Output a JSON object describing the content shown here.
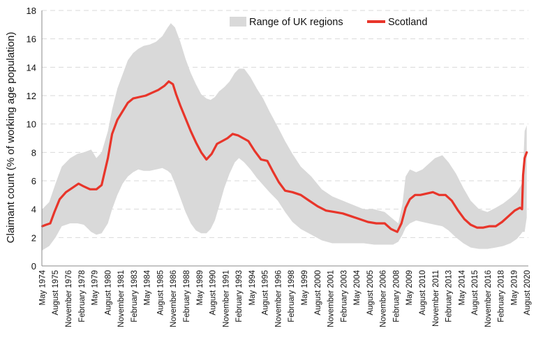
{
  "chart_data": {
    "type": "area",
    "title": "",
    "xlabel": "",
    "ylabel": "Claimant count (% of working age population)",
    "ylim": [
      0,
      18
    ],
    "yticks": [
      "0",
      "2",
      "4",
      "6",
      "8",
      "10",
      "12",
      "14",
      "16",
      "18"
    ],
    "xlim": [
      1974.3,
      2020.7
    ],
    "grid": "horizontal dashed",
    "legend_position": "top-right",
    "xtick_labels": [
      {
        "label": "May 1974",
        "x": 1974.33
      },
      {
        "label": "August 1975",
        "x": 1975.58
      },
      {
        "label": "November 1976",
        "x": 1976.83
      },
      {
        "label": "February 1978",
        "x": 1978.08
      },
      {
        "label": "May 1979",
        "x": 1979.33
      },
      {
        "label": "August 1980",
        "x": 1980.58
      },
      {
        "label": "November 1981",
        "x": 1981.83
      },
      {
        "label": "February 1983",
        "x": 1983.08
      },
      {
        "label": "May 1984",
        "x": 1984.33
      },
      {
        "label": "August 1985",
        "x": 1985.58
      },
      {
        "label": "November 1986",
        "x": 1986.83
      },
      {
        "label": "February 1988",
        "x": 1988.08
      },
      {
        "label": "May 1989",
        "x": 1989.33
      },
      {
        "label": "August 1990",
        "x": 1990.58
      },
      {
        "label": "November 1991",
        "x": 1991.83
      },
      {
        "label": "February 1993",
        "x": 1993.08
      },
      {
        "label": "May 1994",
        "x": 1994.33
      },
      {
        "label": "August 1995",
        "x": 1995.58
      },
      {
        "label": "November 1996",
        "x": 1996.83
      },
      {
        "label": "February 1998",
        "x": 1998.08
      },
      {
        "label": "May 1999",
        "x": 1999.33
      },
      {
        "label": "August 2000",
        "x": 2000.58
      },
      {
        "label": "November 2001",
        "x": 2001.83
      },
      {
        "label": "February 2003",
        "x": 2003.08
      },
      {
        "label": "May 2004",
        "x": 2004.33
      },
      {
        "label": "August 2005",
        "x": 2005.58
      },
      {
        "label": "November 2006",
        "x": 2006.83
      },
      {
        "label": "February 2008",
        "x": 2008.08
      },
      {
        "label": "May 2009",
        "x": 2009.33
      },
      {
        "label": "August 2010",
        "x": 2010.58
      },
      {
        "label": "November 2011",
        "x": 2011.83
      },
      {
        "label": "February 2013",
        "x": 2013.08
      },
      {
        "label": "May 2014",
        "x": 2014.33
      },
      {
        "label": "August 2015",
        "x": 2015.58
      },
      {
        "label": "November 2016",
        "x": 2016.83
      },
      {
        "label": "February 2018",
        "x": 2018.08
      },
      {
        "label": "May 2019",
        "x": 2019.33
      },
      {
        "label": "August 2020",
        "x": 2020.58
      }
    ],
    "series": [
      {
        "name": "Range of UK regions",
        "kind": "range-band",
        "color": "#d9d9d9",
        "x": [
          1974.33,
          1975.0,
          1975.6,
          1976.2,
          1977.0,
          1977.7,
          1978.3,
          1979.0,
          1979.5,
          1980.0,
          1980.6,
          1981.0,
          1981.5,
          1982.0,
          1982.5,
          1983.0,
          1983.5,
          1984.0,
          1984.6,
          1985.2,
          1985.8,
          1986.3,
          1986.6,
          1987.0,
          1987.5,
          1988.0,
          1988.5,
          1989.0,
          1989.5,
          1990.0,
          1990.4,
          1990.8,
          1991.2,
          1991.7,
          1992.2,
          1992.7,
          1993.1,
          1993.6,
          1994.2,
          1994.8,
          1995.4,
          1996.0,
          1996.8,
          1997.5,
          1998.2,
          1999.0,
          2000.0,
          2001.0,
          2002.0,
          2003.0,
          2004.0,
          2005.0,
          2006.0,
          2007.0,
          2007.8,
          2008.3,
          2008.7,
          2009.0,
          2009.4,
          2010.0,
          2010.6,
          2011.2,
          2011.8,
          2012.5,
          2013.1,
          2013.8,
          2014.5,
          2015.2,
          2016.0,
          2016.8,
          2017.6,
          2018.3,
          2019.0,
          2019.6,
          2019.95,
          2020.15,
          2020.35,
          2020.55
        ],
        "low": [
          1.1,
          1.4,
          2.0,
          2.8,
          3.0,
          3.0,
          2.9,
          2.4,
          2.2,
          2.3,
          3.0,
          4.0,
          5.0,
          5.8,
          6.3,
          6.6,
          6.8,
          6.7,
          6.7,
          6.8,
          6.9,
          6.7,
          6.5,
          5.8,
          4.8,
          3.8,
          3.0,
          2.5,
          2.3,
          2.3,
          2.6,
          3.2,
          4.2,
          5.5,
          6.5,
          7.3,
          7.6,
          7.3,
          6.8,
          6.2,
          5.7,
          5.2,
          4.6,
          3.8,
          3.1,
          2.6,
          2.2,
          1.8,
          1.6,
          1.6,
          1.6,
          1.6,
          1.5,
          1.5,
          1.5,
          1.7,
          2.2,
          2.7,
          3.0,
          3.2,
          3.1,
          3.0,
          2.9,
          2.8,
          2.5,
          2.0,
          1.6,
          1.3,
          1.2,
          1.2,
          1.3,
          1.4,
          1.6,
          1.9,
          2.2,
          2.4,
          2.4,
          3.4
        ],
        "high": [
          4.0,
          4.5,
          5.8,
          7.0,
          7.6,
          7.9,
          8.0,
          8.2,
          7.6,
          8.0,
          9.5,
          11.0,
          12.5,
          13.5,
          14.5,
          15.0,
          15.3,
          15.5,
          15.6,
          15.8,
          16.2,
          16.8,
          17.1,
          16.8,
          15.8,
          14.6,
          13.6,
          12.8,
          12.1,
          11.8,
          11.7,
          11.9,
          12.3,
          12.6,
          13.0,
          13.6,
          13.9,
          13.9,
          13.3,
          12.5,
          11.8,
          10.9,
          9.8,
          8.8,
          7.9,
          7.0,
          6.3,
          5.4,
          4.9,
          4.6,
          4.3,
          4.0,
          4.0,
          3.8,
          3.3,
          3.0,
          4.4,
          6.3,
          6.8,
          6.6,
          6.8,
          7.2,
          7.6,
          7.8,
          7.3,
          6.5,
          5.5,
          4.6,
          4.0,
          3.8,
          4.1,
          4.4,
          4.8,
          5.2,
          5.6,
          5.9,
          9.5,
          9.9
        ]
      },
      {
        "name": "Scotland",
        "kind": "line",
        "color": "#e8352a",
        "x": [
          1974.33,
          1974.7,
          1975.1,
          1975.5,
          1976.0,
          1976.6,
          1977.2,
          1977.8,
          1978.3,
          1978.9,
          1979.5,
          1980.0,
          1980.6,
          1981.0,
          1981.5,
          1982.0,
          1982.5,
          1983.0,
          1983.6,
          1984.2,
          1984.8,
          1985.4,
          1986.0,
          1986.4,
          1986.8,
          1987.1,
          1987.5,
          1988.0,
          1988.5,
          1989.0,
          1989.5,
          1990.0,
          1990.5,
          1991.0,
          1991.5,
          1992.0,
          1992.5,
          1993.0,
          1993.5,
          1994.0,
          1994.6,
          1995.2,
          1995.8,
          1996.3,
          1996.9,
          1997.5,
          1998.2,
          1999.0,
          1999.8,
          2000.6,
          2001.4,
          2002.2,
          2003.0,
          2003.8,
          2004.6,
          2005.4,
          2006.2,
          2007.0,
          2007.6,
          2008.2,
          2008.6,
          2009.0,
          2009.4,
          2009.9,
          2010.4,
          2011.0,
          2011.6,
          2012.2,
          2012.8,
          2013.4,
          2014.0,
          2014.6,
          2015.2,
          2015.8,
          2016.4,
          2017.0,
          2017.6,
          2018.2,
          2018.8,
          2019.4,
          2019.9,
          2020.1,
          2020.2,
          2020.35,
          2020.55
        ],
        "y": [
          2.8,
          2.9,
          3.0,
          3.8,
          4.7,
          5.2,
          5.5,
          5.8,
          5.6,
          5.4,
          5.4,
          5.7,
          7.6,
          9.3,
          10.3,
          10.9,
          11.5,
          11.8,
          11.9,
          12.0,
          12.2,
          12.4,
          12.7,
          13.0,
          12.8,
          12.1,
          11.3,
          10.4,
          9.5,
          8.7,
          8.0,
          7.5,
          7.9,
          8.6,
          8.8,
          9.0,
          9.3,
          9.2,
          9.0,
          8.8,
          8.1,
          7.5,
          7.4,
          6.7,
          5.9,
          5.3,
          5.2,
          5.0,
          4.6,
          4.2,
          3.9,
          3.8,
          3.7,
          3.5,
          3.3,
          3.1,
          3.0,
          3.0,
          2.6,
          2.4,
          3.0,
          4.1,
          4.7,
          5.0,
          5.0,
          5.1,
          5.2,
          5.0,
          5.0,
          4.6,
          3.9,
          3.3,
          2.9,
          2.7,
          2.7,
          2.8,
          2.8,
          3.1,
          3.5,
          3.9,
          4.1,
          4.0,
          6.4,
          7.6,
          8.0
        ]
      }
    ]
  }
}
